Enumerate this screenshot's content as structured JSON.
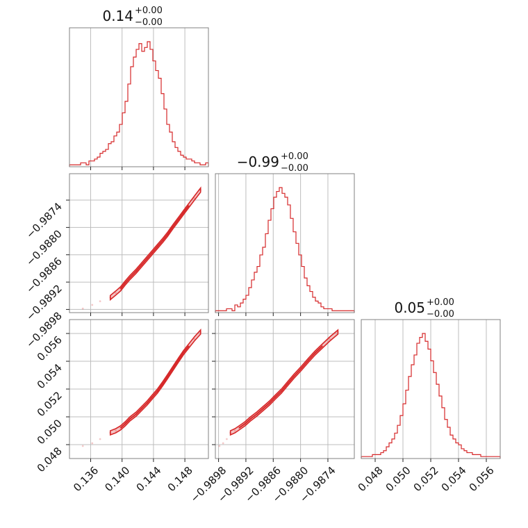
{
  "chart_data": {
    "type": "corner",
    "color": "#d62728",
    "grid": true,
    "parameters": [
      {
        "title_value": "0.14",
        "title_plus": "+0.00",
        "title_minus": "−0.00",
        "range": [
          0.1333,
          0.151
        ],
        "ticks": [
          0.136,
          0.14,
          0.144,
          0.148
        ],
        "tick_labels": [
          "0.136",
          "0.140",
          "0.144",
          "0.148"
        ]
      },
      {
        "title_value": "−0.99",
        "title_plus": "+0.00",
        "title_minus": "−0.00",
        "range": [
          -0.98987,
          -0.98682
        ],
        "ticks": [
          -0.9898,
          -0.9892,
          -0.9886,
          -0.988,
          -0.9874
        ],
        "tick_labels": [
          "−0.9898",
          "−0.9892",
          "−0.9886",
          "−0.9880",
          "−0.9874"
        ]
      },
      {
        "title_value": "0.05",
        "title_plus": "+0.00",
        "title_minus": "−0.00",
        "range": [
          0.047,
          0.057
        ],
        "ticks": [
          0.048,
          0.05,
          0.052,
          0.054,
          0.056
        ],
        "tick_labels": [
          "0.048",
          "0.050",
          "0.052",
          "0.054",
          "0.056"
        ]
      }
    ],
    "histograms": [
      {
        "bins": [
          0.1333,
          0.151
        ],
        "counts": [
          1,
          1,
          1,
          1,
          2,
          2,
          1,
          3,
          3,
          4,
          5,
          7,
          8,
          9,
          12,
          13,
          16,
          18,
          22,
          28,
          34,
          43,
          52,
          57,
          61,
          64,
          60,
          62,
          65,
          61,
          55,
          50,
          46,
          38,
          30,
          22,
          18,
          13,
          10,
          8,
          6,
          5,
          4,
          4,
          3,
          2,
          2,
          1,
          1,
          2
        ]
      },
      {
        "bins": [
          -0.98987,
          -0.98682
        ],
        "counts": [
          1,
          1,
          1,
          1,
          2,
          2,
          1,
          4,
          3,
          5,
          7,
          9,
          13,
          17,
          21,
          24,
          30,
          34,
          41,
          48,
          54,
          60,
          63,
          65,
          62,
          60,
          56,
          49,
          42,
          36,
          30,
          24,
          18,
          14,
          11,
          8,
          6,
          5,
          3,
          2,
          2,
          2,
          1,
          1,
          1,
          1,
          1,
          1,
          1,
          1
        ]
      },
      {
        "bins": [
          0.047,
          0.057
        ],
        "counts": [
          1,
          1,
          1,
          1,
          2,
          2,
          2,
          3,
          4,
          6,
          8,
          10,
          13,
          17,
          22,
          28,
          35,
          42,
          48,
          53,
          59,
          62,
          64,
          60,
          56,
          50,
          44,
          38,
          32,
          26,
          20,
          16,
          12,
          10,
          8,
          7,
          5,
          4,
          3,
          3,
          2,
          2,
          2,
          1,
          1,
          1,
          1,
          1,
          1,
          1
        ]
      }
    ],
    "joint_samples": [
      {
        "x": 0.1385,
        "y": -0.98954,
        "z": 0.04885
      },
      {
        "x": 0.1392,
        "y": -0.98944,
        "z": 0.049
      },
      {
        "x": 0.1398,
        "y": -0.98935,
        "z": 0.0492
      },
      {
        "x": 0.1404,
        "y": -0.98922,
        "z": 0.0495
      },
      {
        "x": 0.141,
        "y": -0.9891,
        "z": 0.04985
      },
      {
        "x": 0.1418,
        "y": -0.98896,
        "z": 0.0502
      },
      {
        "x": 0.1425,
        "y": -0.98882,
        "z": 0.0506
      },
      {
        "x": 0.1432,
        "y": -0.98868,
        "z": 0.051
      },
      {
        "x": 0.1438,
        "y": -0.98856,
        "z": 0.0514
      },
      {
        "x": 0.1445,
        "y": -0.98842,
        "z": 0.05185
      },
      {
        "x": 0.1452,
        "y": -0.98828,
        "z": 0.0524
      },
      {
        "x": 0.1458,
        "y": -0.98815,
        "z": 0.0529
      },
      {
        "x": 0.1465,
        "y": -0.98798,
        "z": 0.0535
      },
      {
        "x": 0.1472,
        "y": -0.98782,
        "z": 0.0541
      },
      {
        "x": 0.1478,
        "y": -0.98768,
        "z": 0.0546
      },
      {
        "x": 0.1485,
        "y": -0.98752,
        "z": 0.0551
      },
      {
        "x": 0.1492,
        "y": -0.98736,
        "z": 0.0556
      },
      {
        "x": 0.15,
        "y": -0.98718,
        "z": 0.0561
      },
      {
        "x": 0.135,
        "y": -0.98978,
        "z": 0.0479
      },
      {
        "x": 0.1362,
        "y": -0.9897,
        "z": 0.0481
      },
      {
        "x": 0.1372,
        "y": -0.98962,
        "z": 0.0484
      }
    ]
  }
}
